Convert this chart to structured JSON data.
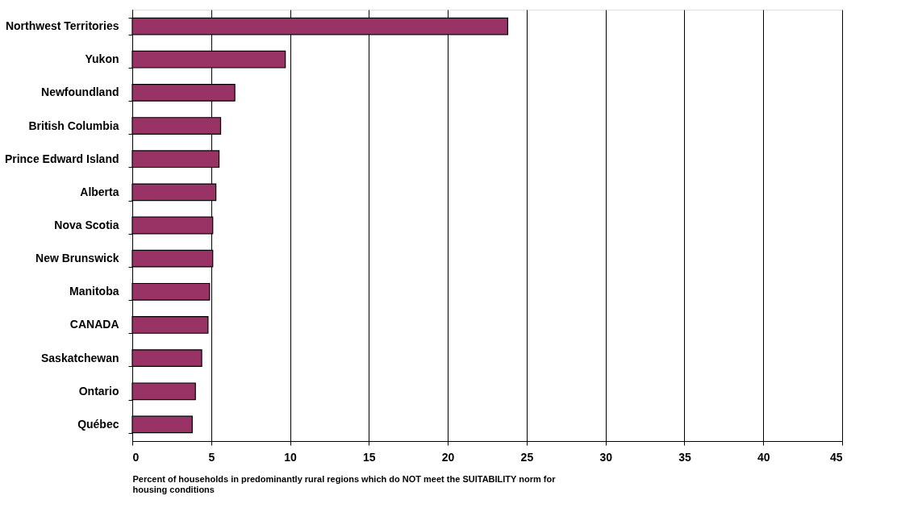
{
  "chart_data": {
    "type": "bar",
    "orientation": "horizontal",
    "categories": [
      "Northwest Territories",
      "Yukon",
      "Newfoundland",
      "British Columbia",
      "Prince Edward Island",
      "Alberta",
      "Nova Scotia",
      "New Brunswick",
      "Manitoba",
      "CANADA",
      "Saskatchewan",
      "Ontario",
      "Québec"
    ],
    "values": [
      23.8,
      9.7,
      6.5,
      5.6,
      5.5,
      5.3,
      5.1,
      5.1,
      4.9,
      4.8,
      4.4,
      4.0,
      3.8
    ],
    "color": "#993366",
    "xlabel": "Percent of households in predominantly rural regions which do NOT meet the SUITABILITY norm for housing conditions",
    "xlim": [
      0,
      45
    ],
    "xticks": [
      0,
      5,
      10,
      15,
      20,
      25,
      30,
      35,
      40,
      45
    ],
    "grid": "x"
  }
}
